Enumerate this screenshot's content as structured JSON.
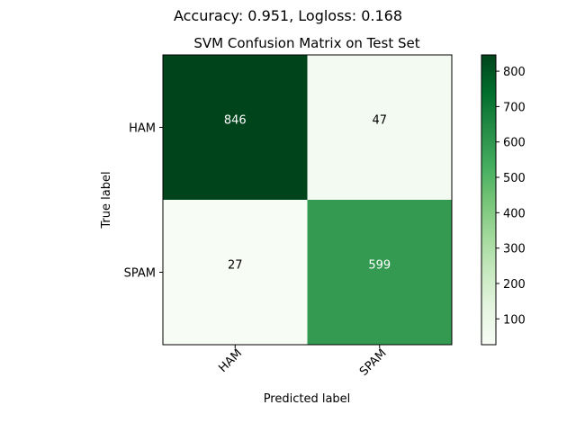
{
  "suptitle": "Accuracy: 0.951, Logloss: 0.168",
  "chart_data": {
    "type": "heatmap",
    "title": "SVM Confusion Matrix on Test Set",
    "xlabel": "Predicted label",
    "ylabel": "True label",
    "x_categories": [
      "HAM",
      "SPAM"
    ],
    "y_categories": [
      "HAM",
      "SPAM"
    ],
    "values": [
      [
        846,
        47
      ],
      [
        27,
        599
      ]
    ],
    "colormap": "Greens",
    "color_range": [
      27,
      846
    ],
    "colorbar_ticks": [
      100,
      200,
      300,
      400,
      500,
      600,
      700,
      800
    ],
    "cell_colors": [
      [
        "#00441b",
        "#f3faf1"
      ],
      [
        "#f7fcf5",
        "#359a51"
      ]
    ],
    "text_colors": [
      [
        "#ffffff",
        "#000000"
      ],
      [
        "#000000",
        "#ffffff"
      ]
    ],
    "colorbar_stops": [
      "#f7fcf5",
      "#e5f5e0",
      "#c7e9c0",
      "#a1d99b",
      "#74c476",
      "#41ab5d",
      "#238b45",
      "#006d2c",
      "#00441b"
    ]
  }
}
